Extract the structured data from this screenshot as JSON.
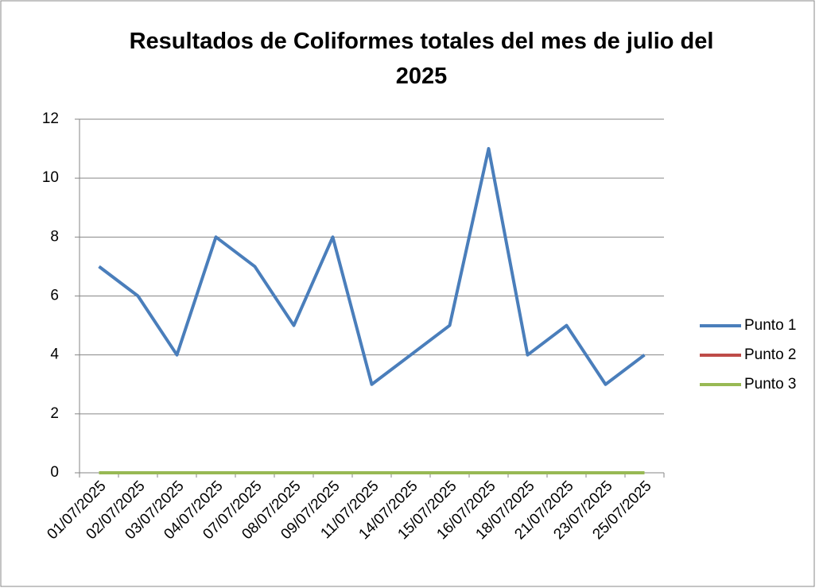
{
  "chart_data": {
    "type": "line",
    "title": "Resultados de Coliformes totales del mes de julio del 2025",
    "categories": [
      "01/07/2025",
      "02/07/2025",
      "03/07/2025",
      "04/07/2025",
      "07/07/2025",
      "08/07/2025",
      "09/07/2025",
      "11/07/2025",
      "14/07/2025",
      "15/07/2025",
      "16/07/2025",
      "18/07/2025",
      "21/07/2025",
      "23/07/2025",
      "25/07/2025"
    ],
    "series": [
      {
        "name": "Punto 1",
        "color": "#4a7ebb",
        "values": [
          7,
          6,
          4,
          8,
          7,
          5,
          8,
          3,
          4,
          5,
          11,
          4,
          5,
          3,
          4
        ]
      },
      {
        "name": "Punto 2",
        "color": "#be4b48",
        "values": [
          0,
          0,
          0,
          0,
          0,
          0,
          0,
          0,
          0,
          0,
          0,
          0,
          0,
          0,
          0
        ]
      },
      {
        "name": "Punto 3",
        "color": "#98b954",
        "values": [
          0,
          0,
          0,
          0,
          0,
          0,
          0,
          0,
          0,
          0,
          0,
          0,
          0,
          0,
          0
        ]
      }
    ],
    "ylim": [
      0,
      12
    ],
    "yticks": [
      0,
      2,
      4,
      6,
      8,
      10,
      12
    ],
    "grid": true,
    "legend": "right"
  }
}
